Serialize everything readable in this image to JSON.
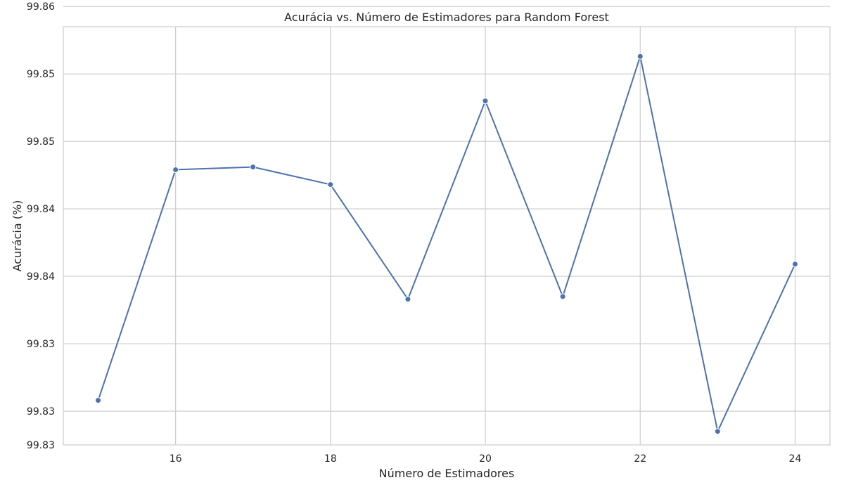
{
  "chart_data": {
    "type": "line",
    "title": "Acurácia vs. Número de Estimadores para Random Forest",
    "xlabel": "Número de Estimadores",
    "ylabel": "Acurácia (%)",
    "x": [
      15,
      16,
      17,
      18,
      19,
      20,
      21,
      22,
      23,
      24
    ],
    "series": [
      {
        "values": [
          99.8308,
          99.8479,
          99.8481,
          99.8468,
          99.8383,
          99.853,
          99.8385,
          99.8563,
          99.8285,
          99.8409
        ]
      }
    ],
    "xticks": [
      16,
      18,
      20,
      22,
      24
    ],
    "xtick_labels": [
      "16",
      "18",
      "20",
      "22",
      "24"
    ],
    "yticks": [
      99.8275,
      99.8325,
      99.8375,
      99.8425,
      99.8475,
      99.8525,
      99.8575
    ],
    "ytick_labels": [
      "99.83",
      "99.83",
      "99.83",
      "99.84",
      "99.84",
      "99.85",
      "99.85",
      "99.86"
    ],
    "ytick_values": [
      99.8275,
      99.83,
      99.835,
      99.84,
      99.845,
      99.85,
      99.855,
      99.86
    ],
    "xlim": [
      14.55,
      24.45
    ],
    "ylim": [
      99.8275,
      99.8585
    ],
    "grid": true,
    "line_color": "#4c72b0",
    "grid_color": "#cccccc"
  }
}
